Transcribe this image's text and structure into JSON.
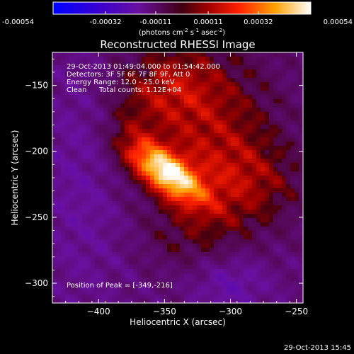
{
  "chart_data": {
    "type": "heatmap",
    "title": "Reconstructed RHESSI Image",
    "xlabel": "Heliocentric X (arcsec)",
    "ylabel": "Heliocentric Y (arcsec)",
    "xlim": [
      -435,
      -245
    ],
    "ylim": [
      -315,
      -125
    ],
    "xticks": [
      -400,
      -350,
      -300,
      -250
    ],
    "yticks": [
      -300,
      -250,
      -200,
      -150
    ],
    "colorbar": {
      "ticks": [
        -0.00054,
        -0.00032,
        -0.00011,
        0.00011,
        0.00032,
        0.00054
      ],
      "tick_labels": [
        "-0.00054",
        "-0.00032",
        "-0.00011",
        "0.00011",
        "0.00032",
        "0.00054"
      ],
      "unit_prefix": "(photons cm",
      "unit_sup1": "-2",
      "unit_mid": " s",
      "unit_sup2": "-1",
      "unit_mid2": " asec",
      "unit_sup3": "-2",
      "unit_suffix": ")"
    },
    "annotations": {
      "time_range": "29-Oct-2013 01:49:04.000 to 01:54:42.000",
      "detectors": "Detectors: 3F 5F 6F 7F 8F 9F, Att 0",
      "energy": "Energy Range: 12.0 - 25.0 keV",
      "method": "Clean",
      "counts": "Total counts: 1.12E+04",
      "peak": "Position of Peak = [-349,-216]"
    },
    "peak": {
      "x": -349,
      "y": -216
    },
    "timestamp": "29-Oct-2013 15:45"
  }
}
